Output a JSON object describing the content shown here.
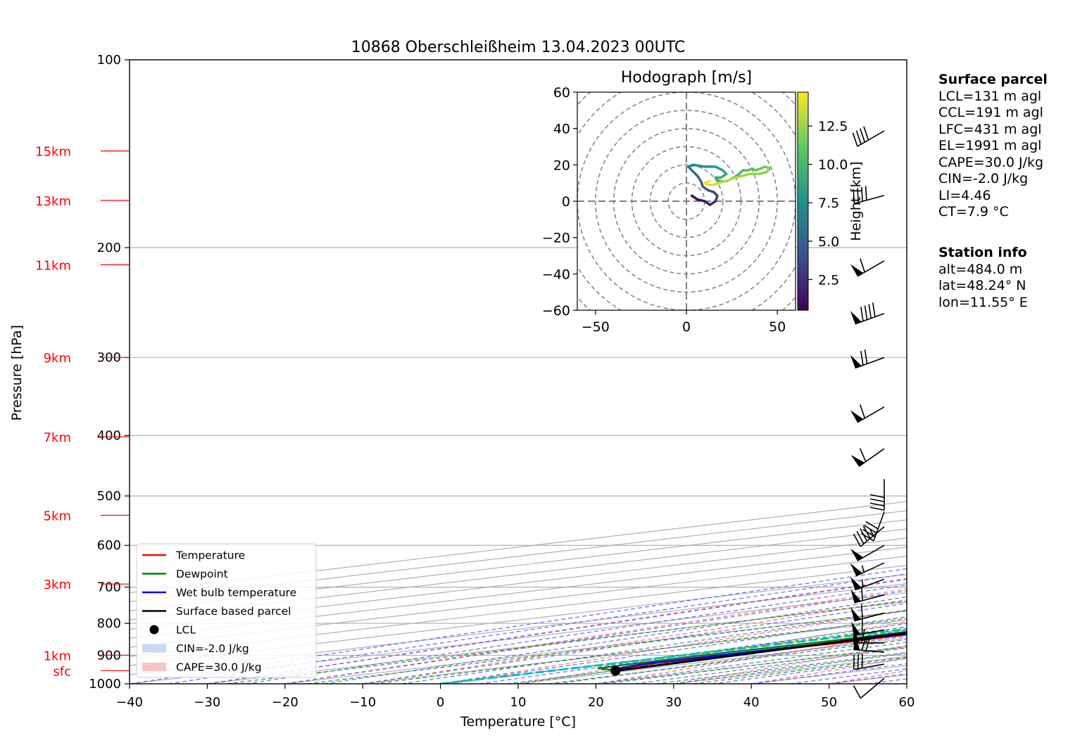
{
  "chart_data": {
    "type": "line",
    "title": "10868 Oberschleißheim 13.04.2023 00UTC",
    "xlabel": "Temperature [°C]",
    "ylabel": "Pressure [hPa]",
    "xlim": [
      -40,
      60
    ],
    "ylim": [
      1000,
      100
    ],
    "y_scale": "log",
    "skew": true,
    "grid": true,
    "x_ticks": [
      "−40",
      "−30",
      "−20",
      "−10",
      "0",
      "10",
      "20",
      "30",
      "40",
      "50",
      "60"
    ],
    "x_tick_values": [
      -40,
      -30,
      -20,
      -10,
      0,
      10,
      20,
      30,
      40,
      50,
      60
    ],
    "y_ticks": [
      "100",
      "200",
      "300",
      "400",
      "500",
      "600",
      "700",
      "800",
      "900",
      "1000"
    ],
    "y_tick_values": [
      100,
      200,
      300,
      400,
      500,
      600,
      700,
      800,
      900,
      1000
    ],
    "height_labels": [
      {
        "label": "15km",
        "p": 140
      },
      {
        "label": "13km",
        "p": 168
      },
      {
        "label": "11km",
        "p": 213
      },
      {
        "label": "9km",
        "p": 300
      },
      {
        "label": "7km",
        "p": 402
      },
      {
        "label": "5km",
        "p": 537
      },
      {
        "label": "3km",
        "p": 692
      },
      {
        "label": "1km",
        "p": 900
      },
      {
        "label": "sfc",
        "p": 953
      }
    ],
    "series": [
      {
        "name": "Temperature",
        "color": "#ff0000",
        "points": [
          [
            8.2,
            953
          ],
          [
            6,
            940
          ],
          [
            5,
            925
          ],
          [
            5.2,
            900
          ],
          [
            6.5,
            860
          ],
          [
            5.5,
            800
          ],
          [
            4.5,
            750
          ],
          [
            3,
            700
          ],
          [
            1.5,
            660
          ],
          [
            0,
            630
          ],
          [
            -1.8,
            600
          ],
          [
            -2.5,
            560
          ],
          [
            -3,
            530
          ],
          [
            -3.5,
            500
          ],
          [
            -7,
            470
          ],
          [
            -11,
            440
          ],
          [
            -14.5,
            410
          ],
          [
            -17.5,
            390
          ],
          [
            -21,
            370
          ],
          [
            -23,
            350
          ],
          [
            -24.5,
            330
          ],
          [
            -25.5,
            310
          ],
          [
            -25.3,
            300
          ],
          [
            -26,
            285
          ],
          [
            -26.5,
            270
          ],
          [
            -26.5,
            255
          ],
          [
            -27,
            240
          ],
          [
            -25.5,
            230
          ],
          [
            -22.5,
            225
          ],
          [
            -21,
            215
          ],
          [
            -20,
            203
          ],
          [
            -19,
            195
          ],
          [
            -19,
            182
          ],
          [
            -17.5,
            178
          ],
          [
            -16,
            168
          ],
          [
            -15,
            160
          ],
          [
            -12.5,
            155
          ],
          [
            -10.5,
            152
          ],
          [
            -8,
            145
          ],
          [
            -7.5,
            140
          ],
          [
            -6.5,
            134
          ],
          [
            -6,
            128
          ],
          [
            -5,
            122
          ],
          [
            -5,
            118
          ]
        ]
      },
      {
        "name": "Dewpoint",
        "color": "#008000",
        "points": [
          [
            8.2,
            953
          ],
          [
            5.5,
            948
          ],
          [
            3.5,
            945
          ],
          [
            3,
            935
          ],
          [
            2.5,
            915
          ],
          [
            2.5,
            890
          ],
          [
            3,
            860
          ],
          [
            3,
            830
          ],
          [
            1.5,
            780
          ],
          [
            1,
            760
          ],
          [
            -0.5,
            700
          ],
          [
            -1.2,
            660
          ],
          [
            -2.5,
            630
          ],
          [
            -3.5,
            600
          ],
          [
            -4.5,
            560
          ],
          [
            -6.8,
            520
          ],
          [
            -8.5,
            480
          ],
          [
            -11,
            450
          ],
          [
            -15,
            420
          ],
          [
            -16.5,
            410
          ],
          [
            -18,
            400
          ],
          [
            -18.5,
            390
          ],
          [
            -20.5,
            375
          ],
          [
            -22.5,
            360
          ],
          [
            -24.5,
            345
          ],
          [
            -26.5,
            330
          ],
          [
            -28,
            315
          ],
          [
            -30.5,
            305
          ],
          [
            -32.5,
            300
          ],
          [
            -30,
            292
          ],
          [
            -32.5,
            285
          ],
          [
            -24,
            282
          ],
          [
            -26,
            270
          ],
          [
            -27,
            263
          ],
          [
            -28,
            248
          ],
          [
            -26.5,
            240
          ],
          [
            -28.5,
            235
          ],
          [
            -26,
            225
          ],
          [
            -32,
            220
          ],
          [
            -35,
            212
          ],
          [
            -36,
            205
          ],
          [
            -36.5,
            195
          ],
          [
            -37.5,
            185
          ],
          [
            -38.5,
            175
          ],
          [
            -39.5,
            165
          ],
          [
            -40,
            155
          ],
          [
            -39.5,
            150
          ],
          [
            -40.5,
            140
          ],
          [
            -40.5,
            130
          ],
          [
            -41.5,
            123
          ],
          [
            -41.5,
            118
          ]
        ]
      },
      {
        "name": "Wet bulb temperature",
        "color": "#0000ff",
        "points": [
          [
            8.2,
            953
          ],
          [
            6,
            945
          ],
          [
            4.5,
            930
          ],
          [
            4.5,
            900
          ],
          [
            5.5,
            860
          ],
          [
            5,
            800
          ],
          [
            4,
            750
          ],
          [
            2.5,
            700
          ],
          [
            1,
            660
          ],
          [
            -0.5,
            630
          ],
          [
            -2.2,
            600
          ],
          [
            -3,
            560
          ],
          [
            -3.5,
            530
          ],
          [
            -4,
            500
          ],
          [
            -7.5,
            470
          ],
          [
            -11.5,
            440
          ],
          [
            -15,
            410
          ],
          [
            -18,
            390
          ],
          [
            -21.5,
            370
          ],
          [
            -23.5,
            350
          ],
          [
            -25,
            330
          ],
          [
            -26,
            310
          ],
          [
            -25.8,
            300
          ],
          [
            -26.5,
            285
          ],
          [
            -27,
            270
          ],
          [
            -27,
            255
          ],
          [
            -27.5,
            240
          ],
          [
            -26,
            230
          ],
          [
            -23,
            225
          ],
          [
            -21.5,
            215
          ],
          [
            -20.5,
            203
          ],
          [
            -19.5,
            195
          ],
          [
            -19.5,
            182
          ],
          [
            -18,
            178
          ],
          [
            -16.5,
            168
          ],
          [
            -15.5,
            160
          ],
          [
            -13,
            155
          ],
          [
            -11,
            152
          ],
          [
            -8.5,
            145
          ],
          [
            -8,
            140
          ],
          [
            -7,
            134
          ],
          [
            -6.5,
            128
          ],
          [
            -5.5,
            122
          ],
          [
            -5.5,
            118
          ]
        ]
      },
      {
        "name": "Surface based parcel",
        "color": "#000000",
        "points": [
          [
            8.2,
            953
          ],
          [
            6.6,
            900
          ],
          [
            4.9,
            850
          ],
          [
            3.0,
            800
          ],
          [
            1.0,
            750
          ],
          [
            -1.2,
            700
          ],
          [
            -3.8,
            650
          ],
          [
            -6.8,
            600
          ],
          [
            -10.3,
            550
          ],
          [
            -14.3,
            500
          ],
          [
            -18.9,
            450
          ],
          [
            -24.3,
            400
          ],
          [
            -30.6,
            350
          ],
          [
            -38.2,
            300
          ],
          [
            -47.3,
            250
          ],
          [
            -58.3,
            200
          ],
          [
            -65.5,
            170
          ],
          [
            -72,
            150
          ],
          [
            -82,
            125
          ],
          [
            -90,
            110
          ]
        ]
      }
    ],
    "lcl": {
      "name": "LCL",
      "t": 8.2,
      "p": 953
    },
    "legend": {
      "position": "bottom-left",
      "entries": [
        {
          "label": "Temperature",
          "kind": "line",
          "color": "#ff0000"
        },
        {
          "label": "Dewpoint",
          "kind": "line",
          "color": "#008000"
        },
        {
          "label": "Wet bulb temperature",
          "kind": "line",
          "color": "#0000ff"
        },
        {
          "label": "Surface based parcel",
          "kind": "line",
          "color": "#000000"
        },
        {
          "label": "LCL",
          "kind": "dot",
          "color": "#000000"
        },
        {
          "label": "CIN=-2.0 J/kg",
          "kind": "patch",
          "color": "#c6dbef"
        },
        {
          "label": "CAPE=30.0 J/kg",
          "kind": "patch",
          "color": "#f4c6c6"
        }
      ]
    },
    "wind_barbs": [
      {
        "p": 980,
        "speed": 10,
        "dir": 230
      },
      {
        "p": 930,
        "speed": 30,
        "dir": 260
      },
      {
        "p": 890,
        "speed": 70,
        "dir": 275
      },
      {
        "p": 860,
        "speed": 65,
        "dir": 270
      },
      {
        "p": 820,
        "speed": 60,
        "dir": 260
      },
      {
        "p": 770,
        "speed": 60,
        "dir": 255
      },
      {
        "p": 720,
        "speed": 60,
        "dir": 255
      },
      {
        "p": 680,
        "speed": 55,
        "dir": 250
      },
      {
        "p": 640,
        "speed": 55,
        "dir": 245
      },
      {
        "p": 600,
        "speed": 50,
        "dir": 240
      },
      {
        "p": 560,
        "speed": 45,
        "dir": 230
      },
      {
        "p": 530,
        "speed": 40,
        "dir": 200
      },
      {
        "p": 470,
        "speed": 40,
        "dir": 180
      },
      {
        "p": 420,
        "speed": 60,
        "dir": 235
      },
      {
        "p": 360,
        "speed": 60,
        "dir": 240
      },
      {
        "p": 300,
        "speed": 70,
        "dir": 250
      },
      {
        "p": 255,
        "speed": 90,
        "dir": 250
      },
      {
        "p": 210,
        "speed": 60,
        "dir": 240
      },
      {
        "p": 165,
        "speed": 40,
        "dir": 255
      },
      {
        "p": 130,
        "speed": 40,
        "dir": 240
      }
    ],
    "hodograph": {
      "title": "Hodograph [m/s]",
      "xlim": [
        -60,
        60
      ],
      "ylim": [
        -60,
        60
      ],
      "x_ticks": [
        "−50",
        "0",
        "50"
      ],
      "x_tick_values": [
        -50,
        0,
        50
      ],
      "y_ticks": [
        "60",
        "40",
        "20",
        "0",
        "−20",
        "−40",
        "−60"
      ],
      "y_tick_values": [
        60,
        40,
        20,
        0,
        -20,
        -40,
        -60
      ],
      "rings": [
        10,
        20,
        30,
        40,
        50,
        60,
        70,
        80
      ],
      "colorbar_label": "Height [km]",
      "colorbar_ticks": [
        "2.5",
        "5.0",
        "7.5",
        "10.0",
        "12.5"
      ],
      "colorbar_tick_values": [
        2.5,
        5.0,
        7.5,
        10.0,
        12.5
      ],
      "colorbar_range": [
        0.5,
        14.7
      ],
      "points": [
        [
          3,
          3,
          0.5
        ],
        [
          6,
          1,
          1.0
        ],
        [
          10,
          0,
          1.5
        ],
        [
          13,
          -2,
          2.0
        ],
        [
          16,
          0,
          2.5
        ],
        [
          17,
          3,
          3.0
        ],
        [
          15,
          5,
          3.5
        ],
        [
          12,
          6,
          4.0
        ],
        [
          9,
          8,
          4.5
        ],
        [
          8,
          11,
          5.0
        ],
        [
          6,
          14,
          5.5
        ],
        [
          3,
          17,
          6.0
        ],
        [
          1,
          19,
          6.5
        ],
        [
          4,
          20,
          7.0
        ],
        [
          10,
          19,
          7.5
        ],
        [
          16,
          19,
          8.0
        ],
        [
          20,
          17,
          8.5
        ],
        [
          22,
          15,
          8.8
        ],
        [
          19,
          13,
          9.0
        ],
        [
          16,
          13,
          9.2
        ],
        [
          18,
          11,
          9.4
        ],
        [
          22,
          11,
          9.6
        ],
        [
          26,
          13,
          9.8
        ],
        [
          29,
          15,
          10.0
        ],
        [
          31,
          17,
          10.2
        ],
        [
          34,
          17,
          10.5
        ],
        [
          36,
          18,
          10.8
        ],
        [
          38,
          17,
          11.0
        ],
        [
          41,
          18,
          11.2
        ],
        [
          43,
          19,
          11.5
        ],
        [
          46,
          18,
          11.8
        ],
        [
          44,
          16,
          12.0
        ],
        [
          40,
          15,
          12.2
        ],
        [
          35,
          15,
          12.5
        ],
        [
          31,
          14,
          12.7
        ],
        [
          27,
          13,
          12.9
        ],
        [
          24,
          12,
          13.1
        ],
        [
          21,
          11,
          13.3
        ],
        [
          18,
          10,
          13.5
        ],
        [
          15,
          9,
          13.7
        ],
        [
          12,
          9,
          14.0
        ],
        [
          10,
          10,
          14.3
        ],
        [
          13,
          11,
          14.6
        ]
      ]
    }
  },
  "info": {
    "surface_title": "Surface parcel",
    "surface_lines": [
      "LCL=131 m agl",
      "CCL=191 m agl",
      "LFC=431 m agl",
      "EL=1991 m agl",
      "CAPE=30.0 J/kg",
      "CIN=-2.0 J/kg",
      "LI=4.46",
      "CT=7.9 °C"
    ],
    "station_title": "Station info",
    "station_lines": [
      "alt=484.0 m",
      "lat=48.24° N",
      "lon=11.55° E"
    ]
  }
}
